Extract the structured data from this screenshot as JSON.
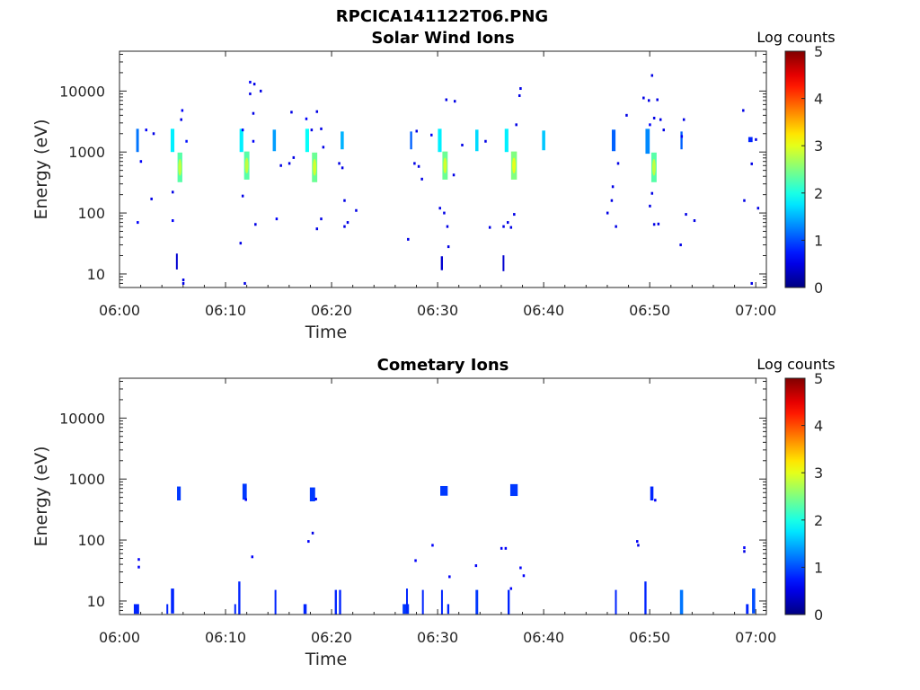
{
  "figure_title": "RPCICA141122T06.PNG",
  "chart_data": [
    {
      "type": "heatmap",
      "title": "Solar Wind Ions",
      "xlabel": "Time",
      "ylabel": "Energy (eV)",
      "x_tick_labels": [
        "06:00",
        "06:10",
        "06:20",
        "06:30",
        "06:40",
        "06:50",
        "07:00"
      ],
      "x_ticks_min": [
        0,
        10,
        20,
        30,
        40,
        50,
        60
      ],
      "xlim_min": [
        0,
        61
      ],
      "y_scale": "log",
      "ylim": [
        6,
        45000
      ],
      "y_ticks": [
        10,
        100,
        1000,
        10000
      ],
      "y_tick_labels": [
        "10",
        "100",
        "1000",
        "10000"
      ],
      "colorbar": {
        "label": "Log counts",
        "range": [
          0,
          5
        ],
        "ticks": [
          "0",
          "1",
          "2",
          "3",
          "4",
          "5"
        ],
        "colormap": "jet"
      },
      "patches": [
        {
          "t": 1.7,
          "e": 1550,
          "v": 1.2,
          "dt": 0.25,
          "de": 1.55
        },
        {
          "t": 5.0,
          "e": 1550,
          "v": 1.8,
          "dt": 0.35,
          "de": 1.55
        },
        {
          "t": 5.7,
          "e": 560,
          "v": 2.3,
          "dt": 0.45,
          "de": 1.75
        },
        {
          "t": 11.5,
          "e": 1550,
          "v": 1.8,
          "dt": 0.35,
          "de": 1.55
        },
        {
          "t": 12.0,
          "e": 600,
          "v": 2.3,
          "dt": 0.5,
          "de": 1.7
        },
        {
          "t": 14.6,
          "e": 1550,
          "v": 1.4,
          "dt": 0.3,
          "de": 1.5
        },
        {
          "t": 17.7,
          "e": 1550,
          "v": 1.9,
          "dt": 0.35,
          "de": 1.55
        },
        {
          "t": 18.4,
          "e": 560,
          "v": 2.4,
          "dt": 0.5,
          "de": 1.75
        },
        {
          "t": 21.0,
          "e": 1550,
          "v": 1.5,
          "dt": 0.3,
          "de": 1.4
        },
        {
          "t": 27.5,
          "e": 1550,
          "v": 1.1,
          "dt": 0.2,
          "de": 1.4
        },
        {
          "t": 30.2,
          "e": 1550,
          "v": 1.8,
          "dt": 0.35,
          "de": 1.55
        },
        {
          "t": 30.7,
          "e": 600,
          "v": 2.4,
          "dt": 0.5,
          "de": 1.7
        },
        {
          "t": 33.7,
          "e": 1550,
          "v": 1.7,
          "dt": 0.3,
          "de": 1.5
        },
        {
          "t": 36.5,
          "e": 1550,
          "v": 1.8,
          "dt": 0.35,
          "de": 1.55
        },
        {
          "t": 37.2,
          "e": 600,
          "v": 2.5,
          "dt": 0.55,
          "de": 1.7
        },
        {
          "t": 40.0,
          "e": 1550,
          "v": 1.6,
          "dt": 0.3,
          "de": 1.45
        },
        {
          "t": 46.6,
          "e": 1550,
          "v": 1.1,
          "dt": 0.35,
          "de": 1.5
        },
        {
          "t": 49.8,
          "e": 1500,
          "v": 1.3,
          "dt": 0.4,
          "de": 1.6
        },
        {
          "t": 50.4,
          "e": 560,
          "v": 2.3,
          "dt": 0.5,
          "de": 1.75
        },
        {
          "t": 53.0,
          "e": 1550,
          "v": 1.1,
          "dt": 0.2,
          "de": 1.4
        },
        {
          "t": 59.5,
          "e": 1600,
          "v": 0.8,
          "dt": 0.4,
          "de": 1.1
        },
        {
          "t": 5.4,
          "e": 16,
          "v": 0.4,
          "dt": 0.15,
          "de": 1.35
        },
        {
          "t": 30.4,
          "e": 15,
          "v": 0.4,
          "dt": 0.2,
          "de": 1.3
        },
        {
          "t": 36.2,
          "e": 15,
          "v": 0.4,
          "dt": 0.15,
          "de": 1.35
        }
      ],
      "specks": [
        {
          "t": 2.5,
          "e": 2300,
          "v": 0.6
        },
        {
          "t": 3.2,
          "e": 2000,
          "v": 0.5
        },
        {
          "t": 2.0,
          "e": 700,
          "v": 0.6
        },
        {
          "t": 3.0,
          "e": 170,
          "v": 0.5
        },
        {
          "t": 1.7,
          "e": 70,
          "v": 0.6
        },
        {
          "t": 5.0,
          "e": 220,
          "v": 0.5
        },
        {
          "t": 5.0,
          "e": 75,
          "v": 0.6
        },
        {
          "t": 5.8,
          "e": 3400,
          "v": 0.5
        },
        {
          "t": 5.9,
          "e": 4800,
          "v": 0.6
        },
        {
          "t": 6.0,
          "e": 8,
          "v": 0.5
        },
        {
          "t": 6.0,
          "e": 7,
          "v": 0.5
        },
        {
          "t": 6.3,
          "e": 1500,
          "v": 0.7
        },
        {
          "t": 11.6,
          "e": 2300,
          "v": 0.6
        },
        {
          "t": 11.6,
          "e": 190,
          "v": 0.5
        },
        {
          "t": 11.4,
          "e": 32,
          "v": 0.5
        },
        {
          "t": 11.8,
          "e": 7,
          "v": 0.5
        },
        {
          "t": 12.3,
          "e": 14000,
          "v": 0.6
        },
        {
          "t": 12.7,
          "e": 13000,
          "v": 0.5
        },
        {
          "t": 12.3,
          "e": 9000,
          "v": 0.5
        },
        {
          "t": 12.6,
          "e": 4300,
          "v": 0.5
        },
        {
          "t": 12.6,
          "e": 1500,
          "v": 0.6
        },
        {
          "t": 12.8,
          "e": 65,
          "v": 0.5
        },
        {
          "t": 13.3,
          "e": 10000,
          "v": 0.5
        },
        {
          "t": 14.8,
          "e": 80,
          "v": 0.6
        },
        {
          "t": 15.2,
          "e": 600,
          "v": 0.5
        },
        {
          "t": 16.0,
          "e": 650,
          "v": 0.5
        },
        {
          "t": 16.2,
          "e": 4500,
          "v": 0.5
        },
        {
          "t": 16.4,
          "e": 810,
          "v": 0.5
        },
        {
          "t": 17.6,
          "e": 3500,
          "v": 0.6
        },
        {
          "t": 18.1,
          "e": 2300,
          "v": 0.5
        },
        {
          "t": 18.6,
          "e": 4600,
          "v": 0.5
        },
        {
          "t": 19.0,
          "e": 2400,
          "v": 0.5
        },
        {
          "t": 19.2,
          "e": 1200,
          "v": 0.5
        },
        {
          "t": 19.0,
          "e": 80,
          "v": 0.5
        },
        {
          "t": 18.6,
          "e": 55,
          "v": 0.5
        },
        {
          "t": 20.7,
          "e": 650,
          "v": 0.5
        },
        {
          "t": 21.0,
          "e": 550,
          "v": 0.5
        },
        {
          "t": 21.2,
          "e": 160,
          "v": 0.5
        },
        {
          "t": 21.5,
          "e": 70,
          "v": 0.5
        },
        {
          "t": 21.2,
          "e": 60,
          "v": 0.5
        },
        {
          "t": 22.3,
          "e": 110,
          "v": 0.5
        },
        {
          "t": 27.8,
          "e": 650,
          "v": 0.5
        },
        {
          "t": 28.2,
          "e": 580,
          "v": 0.5
        },
        {
          "t": 28.0,
          "e": 2200,
          "v": 0.5
        },
        {
          "t": 28.5,
          "e": 360,
          "v": 0.5
        },
        {
          "t": 27.2,
          "e": 37,
          "v": 0.5
        },
        {
          "t": 29.4,
          "e": 1900,
          "v": 0.6
        },
        {
          "t": 30.2,
          "e": 120,
          "v": 0.5
        },
        {
          "t": 30.6,
          "e": 100,
          "v": 0.5
        },
        {
          "t": 30.9,
          "e": 60,
          "v": 0.5
        },
        {
          "t": 31.0,
          "e": 28,
          "v": 0.5
        },
        {
          "t": 30.8,
          "e": 7200,
          "v": 0.5
        },
        {
          "t": 31.6,
          "e": 6800,
          "v": 0.5
        },
        {
          "t": 31.5,
          "e": 420,
          "v": 0.5
        },
        {
          "t": 32.3,
          "e": 1300,
          "v": 0.5
        },
        {
          "t": 34.5,
          "e": 1500,
          "v": 0.5
        },
        {
          "t": 34.9,
          "e": 58,
          "v": 0.5
        },
        {
          "t": 36.2,
          "e": 60,
          "v": 0.5
        },
        {
          "t": 36.6,
          "e": 70,
          "v": 0.5
        },
        {
          "t": 36.9,
          "e": 58,
          "v": 0.5
        },
        {
          "t": 36.4,
          "e": 5,
          "v": 0.5
        },
        {
          "t": 37.4,
          "e": 2800,
          "v": 0.5
        },
        {
          "t": 37.7,
          "e": 8400,
          "v": 0.5
        },
        {
          "t": 37.8,
          "e": 11000,
          "v": 0.5
        },
        {
          "t": 37.2,
          "e": 95,
          "v": 0.5
        },
        {
          "t": 46.0,
          "e": 100,
          "v": 0.5
        },
        {
          "t": 46.5,
          "e": 270,
          "v": 0.5
        },
        {
          "t": 46.4,
          "e": 160,
          "v": 0.5
        },
        {
          "t": 46.8,
          "e": 60,
          "v": 0.5
        },
        {
          "t": 47.0,
          "e": 650,
          "v": 0.5
        },
        {
          "t": 47.8,
          "e": 4000,
          "v": 0.5
        },
        {
          "t": 49.4,
          "e": 7700,
          "v": 0.5
        },
        {
          "t": 49.9,
          "e": 7000,
          "v": 0.5
        },
        {
          "t": 50.2,
          "e": 18000,
          "v": 0.5
        },
        {
          "t": 50.7,
          "e": 7200,
          "v": 0.5
        },
        {
          "t": 50.4,
          "e": 3600,
          "v": 0.5
        },
        {
          "t": 50.0,
          "e": 2800,
          "v": 0.6
        },
        {
          "t": 51.3,
          "e": 2300,
          "v": 0.5
        },
        {
          "t": 50.2,
          "e": 210,
          "v": 0.5
        },
        {
          "t": 50.0,
          "e": 130,
          "v": 0.5
        },
        {
          "t": 50.4,
          "e": 65,
          "v": 0.5
        },
        {
          "t": 50.8,
          "e": 66,
          "v": 0.5
        },
        {
          "t": 51.0,
          "e": 3400,
          "v": 0.5
        },
        {
          "t": 52.9,
          "e": 30,
          "v": 0.5
        },
        {
          "t": 53.0,
          "e": 1800,
          "v": 0.6
        },
        {
          "t": 53.2,
          "e": 3400,
          "v": 0.5
        },
        {
          "t": 53.4,
          "e": 95,
          "v": 0.5
        },
        {
          "t": 54.2,
          "e": 75,
          "v": 0.5
        },
        {
          "t": 58.8,
          "e": 4800,
          "v": 0.5
        },
        {
          "t": 58.9,
          "e": 160,
          "v": 0.5
        },
        {
          "t": 59.6,
          "e": 640,
          "v": 0.5
        },
        {
          "t": 60.0,
          "e": 1600,
          "v": 0.5
        },
        {
          "t": 60.2,
          "e": 120,
          "v": 0.5
        },
        {
          "t": 59.6,
          "e": 7,
          "v": 0.5
        }
      ]
    },
    {
      "type": "heatmap",
      "title": "Cometary Ions",
      "xlabel": "Time",
      "ylabel": "Energy (eV)",
      "x_tick_labels": [
        "06:00",
        "06:10",
        "06:20",
        "06:30",
        "06:40",
        "06:50",
        "07:00"
      ],
      "x_ticks_min": [
        0,
        10,
        20,
        30,
        40,
        50,
        60
      ],
      "xlim_min": [
        0,
        61
      ],
      "y_scale": "log",
      "ylim": [
        6,
        45000
      ],
      "y_ticks": [
        10,
        100,
        1000,
        10000
      ],
      "y_tick_labels": [
        "10",
        "100",
        "1000",
        "10000"
      ],
      "colorbar": {
        "label": "Log counts",
        "range": [
          0,
          5
        ],
        "ticks": [
          "0",
          "1",
          "2",
          "3",
          "4",
          "5"
        ],
        "colormap": "jet"
      },
      "patches": [
        {
          "t": 5.6,
          "e": 580,
          "v": 0.9,
          "dt": 0.35,
          "de": 1.3
        },
        {
          "t": 11.8,
          "e": 620,
          "v": 0.9,
          "dt": 0.4,
          "de": 1.35
        },
        {
          "t": 18.2,
          "e": 560,
          "v": 0.9,
          "dt": 0.5,
          "de": 1.3
        },
        {
          "t": 30.6,
          "e": 640,
          "v": 0.9,
          "dt": 0.7,
          "de": 1.2
        },
        {
          "t": 37.2,
          "e": 660,
          "v": 0.9,
          "dt": 0.7,
          "de": 1.25
        },
        {
          "t": 50.2,
          "e": 580,
          "v": 0.8,
          "dt": 0.3,
          "de": 1.3
        },
        {
          "t": 1.6,
          "e": 7.4,
          "v": 0.8,
          "dt": 0.5,
          "de": 1.2
        },
        {
          "t": 5.0,
          "e": 10,
          "v": 0.8,
          "dt": 0.3,
          "de": 1.6
        },
        {
          "t": 4.5,
          "e": 7.4,
          "v": 0.8,
          "dt": 0.15,
          "de": 1.2
        },
        {
          "t": 10.9,
          "e": 7.4,
          "v": 0.8,
          "dt": 0.15,
          "de": 1.2
        },
        {
          "t": 11.3,
          "e": 11,
          "v": 0.8,
          "dt": 0.2,
          "de": 1.9
        },
        {
          "t": 14.7,
          "e": 9.5,
          "v": 0.8,
          "dt": 0.15,
          "de": 1.6
        },
        {
          "t": 17.5,
          "e": 7.4,
          "v": 0.8,
          "dt": 0.3,
          "de": 1.2
        },
        {
          "t": 20.4,
          "e": 9.5,
          "v": 0.8,
          "dt": 0.2,
          "de": 1.6
        },
        {
          "t": 20.8,
          "e": 9.5,
          "v": 0.8,
          "dt": 0.2,
          "de": 1.6
        },
        {
          "t": 27.0,
          "e": 7.4,
          "v": 0.9,
          "dt": 0.6,
          "de": 1.2
        },
        {
          "t": 27.1,
          "e": 10,
          "v": 0.8,
          "dt": 0.15,
          "de": 1.6
        },
        {
          "t": 28.6,
          "e": 9.5,
          "v": 0.8,
          "dt": 0.15,
          "de": 1.6
        },
        {
          "t": 30.4,
          "e": 9.5,
          "v": 0.8,
          "dt": 0.15,
          "de": 1.6
        },
        {
          "t": 31.0,
          "e": 7.4,
          "v": 0.8,
          "dt": 0.2,
          "de": 1.2
        },
        {
          "t": 33.7,
          "e": 9.5,
          "v": 0.9,
          "dt": 0.25,
          "de": 1.6
        },
        {
          "t": 36.7,
          "e": 9.5,
          "v": 0.8,
          "dt": 0.2,
          "de": 1.6
        },
        {
          "t": 46.8,
          "e": 9.5,
          "v": 0.8,
          "dt": 0.15,
          "de": 1.6
        },
        {
          "t": 49.6,
          "e": 11,
          "v": 0.8,
          "dt": 0.2,
          "de": 1.9
        },
        {
          "t": 53.0,
          "e": 9.5,
          "v": 1.2,
          "dt": 0.3,
          "de": 1.6
        },
        {
          "t": 59.2,
          "e": 7.4,
          "v": 0.8,
          "dt": 0.25,
          "de": 1.2
        },
        {
          "t": 59.8,
          "e": 10,
          "v": 1.0,
          "dt": 0.3,
          "de": 1.6
        }
      ],
      "specks": [
        {
          "t": 1.8,
          "e": 48,
          "v": 0.6
        },
        {
          "t": 1.8,
          "e": 36,
          "v": 0.6
        },
        {
          "t": 12.5,
          "e": 53,
          "v": 0.6
        },
        {
          "t": 17.8,
          "e": 95,
          "v": 0.6
        },
        {
          "t": 18.2,
          "e": 130,
          "v": 0.5
        },
        {
          "t": 27.9,
          "e": 46,
          "v": 0.6
        },
        {
          "t": 29.5,
          "e": 82,
          "v": 0.6
        },
        {
          "t": 31.1,
          "e": 25,
          "v": 0.6
        },
        {
          "t": 33.6,
          "e": 38,
          "v": 0.6
        },
        {
          "t": 36.0,
          "e": 73,
          "v": 0.6
        },
        {
          "t": 36.4,
          "e": 73,
          "v": 0.6
        },
        {
          "t": 36.9,
          "e": 16,
          "v": 0.6
        },
        {
          "t": 37.8,
          "e": 35,
          "v": 0.6
        },
        {
          "t": 38.1,
          "e": 26,
          "v": 0.6
        },
        {
          "t": 48.8,
          "e": 95,
          "v": 0.6
        },
        {
          "t": 48.9,
          "e": 82,
          "v": 0.5
        },
        {
          "t": 58.9,
          "e": 75,
          "v": 0.6
        },
        {
          "t": 58.9,
          "e": 65,
          "v": 0.5
        },
        {
          "t": 50.5,
          "e": 450,
          "v": 0.6
        },
        {
          "t": 11.9,
          "e": 460,
          "v": 0.6
        },
        {
          "t": 18.5,
          "e": 470,
          "v": 0.6
        }
      ]
    }
  ]
}
